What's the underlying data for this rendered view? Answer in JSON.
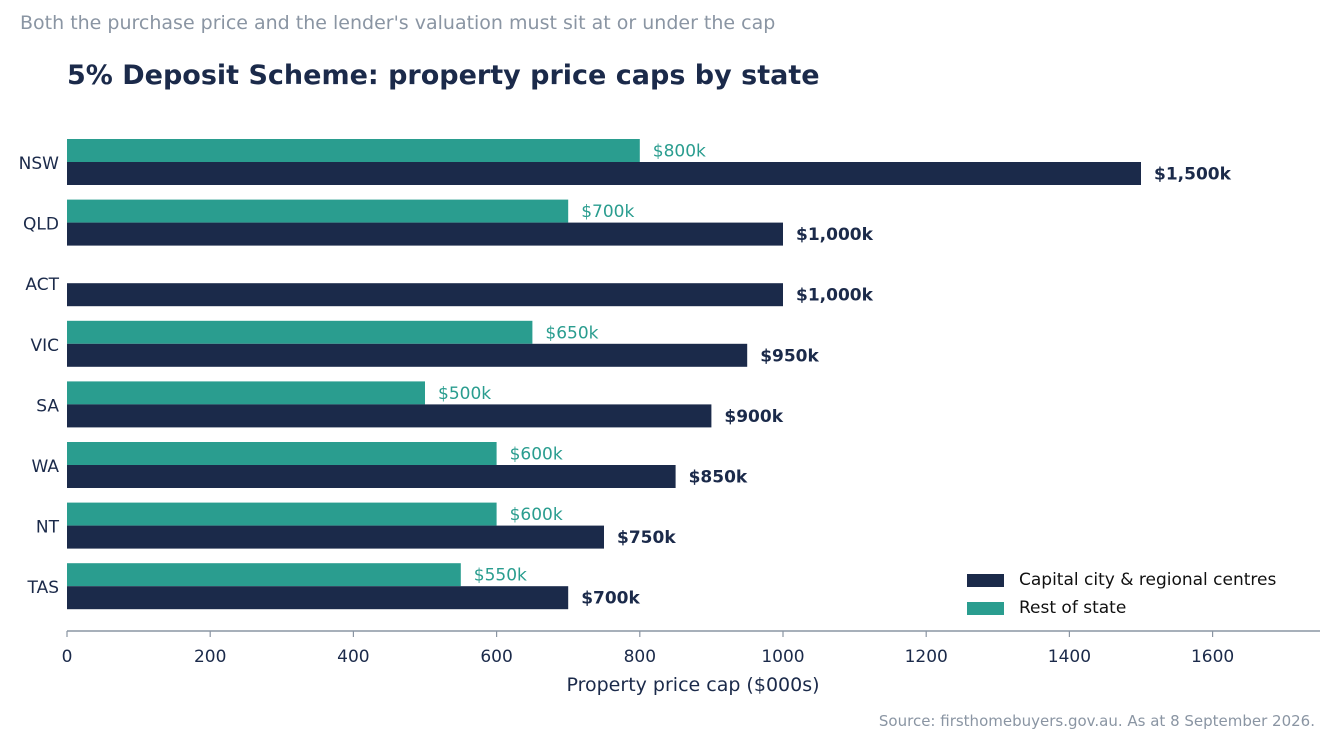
{
  "subtitle": "Both the purchase price and the lender's valuation must sit at or under the cap",
  "source": "Source: firsthomebuyers.gov.au. As at 8 September 2026.",
  "colors": {
    "capital": "#1b2a4a",
    "rest": "#2a9d8f",
    "axis": "#8a95a3",
    "text": "#1b2a4a"
  },
  "chart_data": {
    "type": "bar",
    "orientation": "horizontal",
    "title": "5% Deposit Scheme: property price caps by state",
    "xlabel": "Property price cap ($000s)",
    "ylabel": "",
    "xlim": [
      0,
      1750
    ],
    "xticks": [
      0,
      200,
      400,
      600,
      800,
      1000,
      1200,
      1400,
      1600
    ],
    "grid": false,
    "legend_position": "bottom-right",
    "categories": [
      "NSW",
      "QLD",
      "ACT",
      "VIC",
      "SA",
      "WA",
      "NT",
      "TAS"
    ],
    "series": [
      {
        "name": "Capital city & regional centres",
        "values": [
          1500,
          1000,
          1000,
          950,
          900,
          850,
          750,
          700
        ],
        "labels": [
          "$1,500k",
          "$1,000k",
          "$1,000k",
          "$950k",
          "$900k",
          "$850k",
          "$750k",
          "$700k"
        ]
      },
      {
        "name": "Rest of state",
        "values": [
          800,
          700,
          null,
          650,
          500,
          600,
          600,
          550
        ],
        "labels": [
          "$800k",
          "$700k",
          "",
          "$650k",
          "$500k",
          "$600k",
          "$600k",
          "$550k"
        ]
      }
    ]
  }
}
